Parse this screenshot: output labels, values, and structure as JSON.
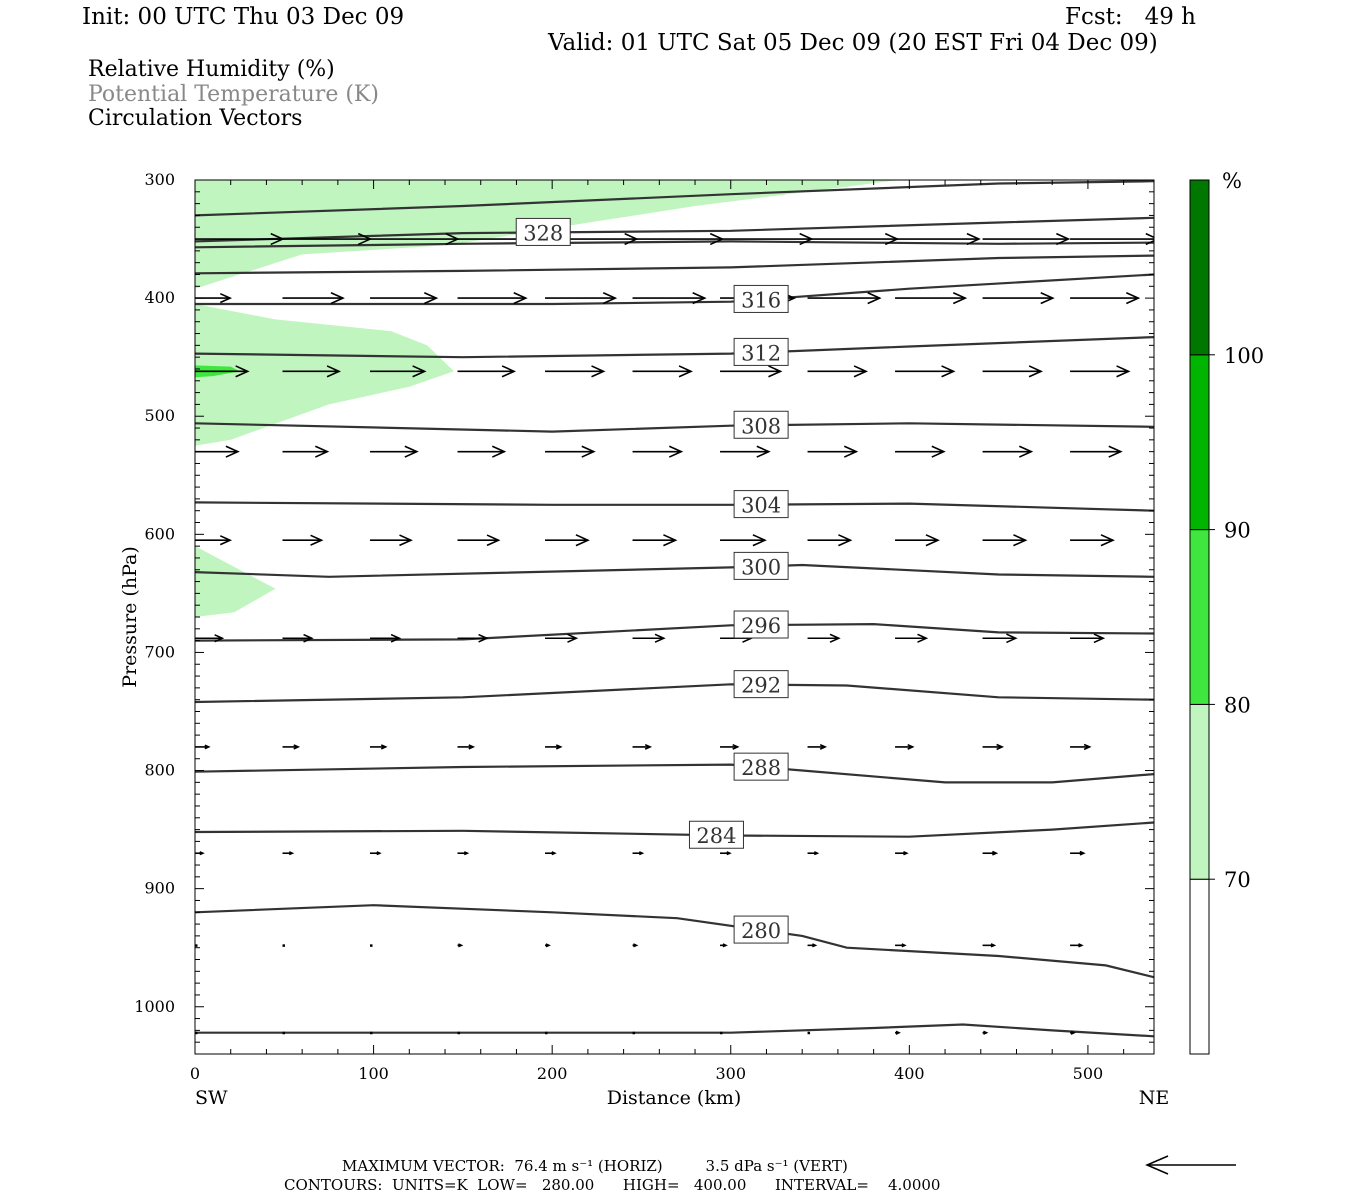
{
  "header": {
    "init": "Init: 00 UTC Thu 03 Dec 09",
    "fcst": "Fcst:   49 h",
    "valid": "Valid: 01 UTC Sat 05 Dec 09 (20 EST Fri 04 Dec 09)"
  },
  "legend": {
    "rh": "Relative Humidity (%)",
    "theta": "Potential Temperature (K)",
    "vectors": "Circulation Vectors"
  },
  "footer": {
    "max_vector": "MAXIMUM VECTOR:  76.4 m s⁻¹ (HORIZ)         3.5 dPa s⁻¹ (VERT)",
    "contours": "CONTOURS:  UNITS=K  LOW=   280.00      HIGH=   400.00      INTERVAL=    4.0000"
  },
  "colors": {
    "rh_70_80": "#c0f5c0",
    "rh_80_90": "#3ee63e",
    "rh_90_100": "#00b400",
    "rh_100": "#007800",
    "contour": "#333333"
  },
  "chart_data": {
    "type": "cross-section",
    "xlabel": "Distance (km)",
    "ylabel": "Pressure (hPa)",
    "x_end_labels": [
      "SW",
      "NE"
    ],
    "xlim": [
      0,
      537
    ],
    "ylim": [
      1040,
      300
    ],
    "x_ticks": [
      0,
      100,
      200,
      300,
      400,
      500
    ],
    "y_ticks": [
      300,
      400,
      500,
      600,
      700,
      800,
      900,
      1000
    ],
    "colorbar": {
      "unit": "%",
      "ticks": [
        "70",
        "80",
        "90",
        "100"
      ],
      "bands": [
        {
          "from": 60,
          "to": 70,
          "color": "#ffffff"
        },
        {
          "from": 70,
          "to": 80,
          "color": "#c0f5c0"
        },
        {
          "from": 80,
          "to": 90,
          "color": "#3ee63e"
        },
        {
          "from": 90,
          "to": 100,
          "color": "#00b400"
        },
        {
          "from": 100,
          "to": 110,
          "color": "#007800"
        }
      ]
    },
    "rh_regions": [
      {
        "level": "70-80",
        "points": [
          [
            0,
            300
          ],
          [
            394,
            300
          ],
          [
            343,
            310
          ],
          [
            280,
            322
          ],
          [
            225,
            335
          ],
          [
            143,
            355
          ],
          [
            60,
            363
          ],
          [
            0,
            392
          ]
        ]
      },
      {
        "level": "70-80",
        "points": [
          [
            0,
            405
          ],
          [
            45,
            418
          ],
          [
            110,
            428
          ],
          [
            130,
            440
          ],
          [
            145,
            462
          ],
          [
            120,
            475
          ],
          [
            75,
            490
          ],
          [
            20,
            520
          ],
          [
            0,
            525
          ]
        ]
      },
      {
        "level": "80-90",
        "points": [
          [
            0,
            457
          ],
          [
            20,
            458
          ],
          [
            25,
            462
          ],
          [
            10,
            466
          ],
          [
            0,
            467
          ]
        ]
      },
      {
        "level": "70-80",
        "points": [
          [
            0,
            610
          ],
          [
            45,
            646
          ],
          [
            22,
            666
          ],
          [
            0,
            670
          ]
        ]
      }
    ],
    "theta_contours": [
      {
        "label": "",
        "points": [
          [
            0,
            330
          ],
          [
            150,
            322
          ],
          [
            300,
            312
          ],
          [
            450,
            303
          ],
          [
            537,
            301
          ]
        ]
      },
      {
        "label": "328",
        "points": [
          [
            0,
            352
          ],
          [
            150,
            345
          ],
          [
            300,
            343
          ],
          [
            450,
            336
          ],
          [
            537,
            332
          ]
        ]
      },
      {
        "label": "",
        "points": [
          [
            0,
            357
          ],
          [
            150,
            354
          ],
          [
            300,
            352
          ],
          [
            450,
            354
          ],
          [
            537,
            353
          ]
        ]
      },
      {
        "label": "",
        "points": [
          [
            0,
            379
          ],
          [
            150,
            377
          ],
          [
            300,
            374
          ],
          [
            450,
            366
          ],
          [
            537,
            364
          ]
        ]
      },
      {
        "label": "316",
        "points": [
          [
            0,
            405
          ],
          [
            200,
            405
          ],
          [
            300,
            403
          ],
          [
            400,
            392
          ],
          [
            537,
            380
          ]
        ]
      },
      {
        "label": "312",
        "points": [
          [
            0,
            447
          ],
          [
            150,
            450
          ],
          [
            300,
            447
          ],
          [
            400,
            441
          ],
          [
            537,
            433
          ]
        ]
      },
      {
        "label": "308",
        "points": [
          [
            0,
            506
          ],
          [
            200,
            513
          ],
          [
            300,
            508
          ],
          [
            400,
            506
          ],
          [
            537,
            509
          ]
        ]
      },
      {
        "label": "304",
        "points": [
          [
            0,
            573
          ],
          [
            200,
            575
          ],
          [
            300,
            575
          ],
          [
            400,
            574
          ],
          [
            537,
            580
          ]
        ]
      },
      {
        "label": "300",
        "points": [
          [
            0,
            632
          ],
          [
            75,
            636
          ],
          [
            300,
            628
          ],
          [
            340,
            626
          ],
          [
            450,
            634
          ],
          [
            537,
            636
          ]
        ]
      },
      {
        "label": "296",
        "points": [
          [
            0,
            690
          ],
          [
            150,
            689
          ],
          [
            300,
            677
          ],
          [
            380,
            676
          ],
          [
            450,
            683
          ],
          [
            537,
            684
          ]
        ]
      },
      {
        "label": "292",
        "points": [
          [
            0,
            742
          ],
          [
            150,
            738
          ],
          [
            300,
            727
          ],
          [
            365,
            728
          ],
          [
            450,
            738
          ],
          [
            537,
            740
          ]
        ]
      },
      {
        "label": "288",
        "points": [
          [
            0,
            801
          ],
          [
            150,
            797
          ],
          [
            300,
            795
          ],
          [
            340,
            800
          ],
          [
            420,
            810
          ],
          [
            480,
            810
          ],
          [
            537,
            803
          ]
        ]
      },
      {
        "label": "284",
        "points": [
          [
            0,
            852
          ],
          [
            150,
            851
          ],
          [
            300,
            855
          ],
          [
            400,
            856
          ],
          [
            480,
            850
          ],
          [
            537,
            844
          ]
        ]
      },
      {
        "label": "280",
        "points": [
          [
            0,
            920
          ],
          [
            100,
            914
          ],
          [
            200,
            920
          ],
          [
            270,
            925
          ],
          [
            340,
            940
          ],
          [
            365,
            950
          ],
          [
            450,
            957
          ],
          [
            510,
            965
          ],
          [
            537,
            975
          ]
        ]
      },
      {
        "label": "",
        "points": [
          [
            0,
            1022
          ],
          [
            300,
            1022
          ],
          [
            380,
            1018
          ],
          [
            430,
            1015
          ],
          [
            480,
            1020
          ],
          [
            537,
            1025
          ]
        ]
      }
    ],
    "vector_rows": [
      {
        "p": 350,
        "x": [
          0,
          49,
          98,
          147,
          196,
          245,
          294,
          343,
          392,
          441,
          490
        ],
        "u": [
          45,
          45,
          45,
          46,
          47,
          46,
          47,
          46,
          43,
          44,
          45
        ]
      },
      {
        "p": 400,
        "x": [
          0,
          49,
          98,
          147,
          196,
          245,
          294,
          343,
          392,
          441,
          490
        ],
        "u": [
          18,
          31,
          34,
          35,
          36,
          37,
          38,
          37,
          36,
          36,
          35
        ]
      },
      {
        "p": 462,
        "x": [
          0,
          49,
          98,
          147,
          196,
          245,
          294,
          343,
          392,
          441,
          490
        ],
        "u": [
          27,
          29,
          28,
          29,
          30,
          30,
          31,
          30,
          30,
          30,
          30
        ]
      },
      {
        "p": 530,
        "x": [
          0,
          49,
          98,
          147,
          196,
          245,
          294,
          343,
          392,
          441,
          490
        ],
        "u": [
          22,
          23,
          24,
          24,
          25,
          25,
          25,
          25,
          25,
          25,
          26
        ]
      },
      {
        "p": 605,
        "x": [
          0,
          49,
          98,
          147,
          196,
          245,
          294,
          343,
          392,
          441,
          490
        ],
        "u": [
          18,
          20,
          21,
          21,
          22,
          22,
          23,
          22,
          22,
          22,
          22
        ]
      },
      {
        "p": 688,
        "x": [
          0,
          49,
          98,
          147,
          196,
          245,
          294,
          343,
          392,
          441,
          490
        ],
        "u": [
          14,
          15,
          15,
          15,
          16,
          16,
          16,
          16,
          16,
          17,
          17
        ]
      },
      {
        "p": 780,
        "x": [
          0,
          49,
          98,
          147,
          196,
          245,
          294,
          343,
          392,
          441,
          490
        ],
        "u": [
          7,
          8,
          8,
          8,
          8,
          9,
          9,
          9,
          9,
          10,
          10
        ]
      },
      {
        "p": 870,
        "x": [
          0,
          49,
          98,
          147,
          196,
          245,
          294,
          343,
          392,
          441,
          490
        ],
        "u": [
          4,
          5,
          5,
          5,
          5,
          5,
          5,
          5,
          6,
          7,
          7
        ]
      },
      {
        "p": 948,
        "x": [
          0,
          49,
          98,
          147,
          196,
          245,
          294,
          343,
          392,
          441,
          490
        ],
        "u": [
          1,
          1,
          1,
          2,
          2,
          2,
          3,
          4,
          5,
          6,
          6
        ]
      },
      {
        "p": 1022,
        "x": [
          0,
          49,
          98,
          147,
          196,
          245,
          294,
          343,
          392,
          441,
          490
        ],
        "u": [
          0,
          0,
          0,
          0,
          0,
          0,
          0,
          1,
          2,
          2,
          2
        ]
      }
    ],
    "reference_vector_direction": "left"
  }
}
